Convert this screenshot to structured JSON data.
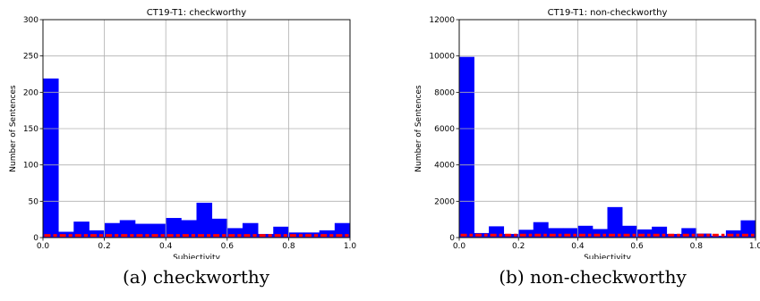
{
  "chart_data": [
    {
      "type": "bar",
      "title": "CT19-T1: checkworthy",
      "xlabel": "Subjectivity",
      "ylabel": "Number of Sentences",
      "xlim": [
        0.0,
        1.0
      ],
      "ylim": [
        0,
        300
      ],
      "xticks": [
        "0.0",
        "0.2",
        "0.4",
        "0.6",
        "0.8",
        "1.0"
      ],
      "yticks": [
        "0",
        "50",
        "100",
        "150",
        "200",
        "250",
        "300"
      ],
      "grid": true,
      "bin_edges": [
        0.0,
        0.05,
        0.1,
        0.15,
        0.2,
        0.25,
        0.3,
        0.35,
        0.4,
        0.45,
        0.5,
        0.55,
        0.6,
        0.65,
        0.7,
        0.75,
        0.8,
        0.85,
        0.9,
        0.95,
        1.0
      ],
      "series": [
        {
          "color": "#0000ff",
          "values": [
            219,
            8,
            22,
            10,
            20,
            24,
            19,
            19,
            27,
            24,
            48,
            26,
            13,
            20,
            5,
            15,
            7,
            7,
            10,
            20
          ]
        },
        {
          "color": "#ff0000",
          "style": "dashed",
          "values": [
            1,
            1,
            1,
            1,
            1,
            1,
            1,
            1,
            1,
            1,
            1,
            1,
            1,
            1,
            1,
            1,
            1,
            1,
            1,
            1
          ]
        }
      ],
      "caption": "(a) checkworthy"
    },
    {
      "type": "bar",
      "title": "CT19-T1: non-checkworthy",
      "xlabel": "Subjectivity",
      "ylabel": "Number of Sentences",
      "xlim": [
        0.0,
        1.0
      ],
      "ylim": [
        0,
        12000
      ],
      "xticks": [
        "0.0",
        "0.2",
        "0.4",
        "0.6",
        "0.8",
        "1.0"
      ],
      "yticks": [
        "0",
        "2000",
        "4000",
        "6000",
        "8000",
        "10000",
        "12000"
      ],
      "grid": true,
      "bin_edges": [
        0.0,
        0.05,
        0.1,
        0.15,
        0.2,
        0.25,
        0.3,
        0.35,
        0.4,
        0.45,
        0.5,
        0.55,
        0.6,
        0.65,
        0.7,
        0.75,
        0.8,
        0.85,
        0.9,
        0.95,
        1.0
      ],
      "series": [
        {
          "color": "#0000ff",
          "values": [
            9950,
            250,
            620,
            200,
            430,
            850,
            520,
            520,
            650,
            470,
            1680,
            650,
            450,
            600,
            200,
            520,
            220,
            100,
            400,
            950
          ]
        },
        {
          "color": "#ff0000",
          "style": "dashed",
          "values": [
            60,
            60,
            60,
            60,
            60,
            60,
            60,
            60,
            60,
            60,
            60,
            60,
            60,
            60,
            60,
            60,
            60,
            60,
            60,
            60
          ]
        }
      ],
      "caption": "(b) non-checkworthy"
    }
  ]
}
